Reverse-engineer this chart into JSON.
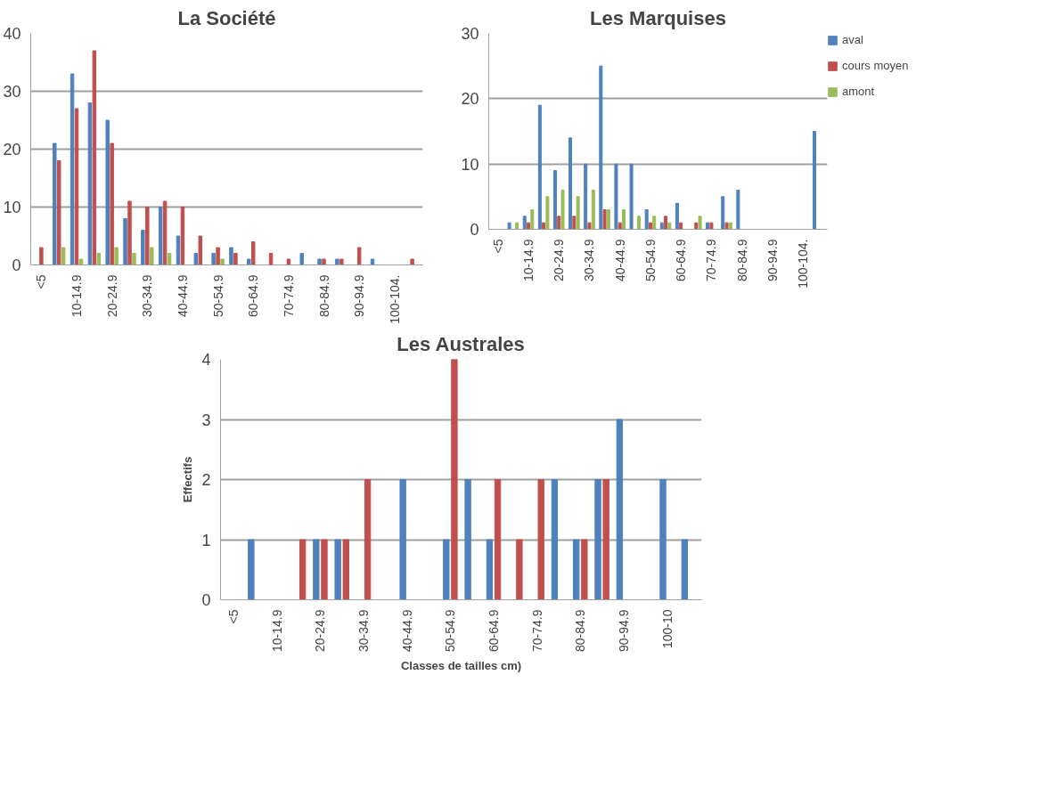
{
  "chart_data": [
    {
      "type": "bar",
      "title": "La Société",
      "categories": [
        "<5",
        null,
        "10-14.9",
        null,
        "20-24.9",
        null,
        "30-34.9",
        null,
        "40-44.9",
        null,
        "50-54.9",
        null,
        "60-64.9",
        null,
        "70-74.9",
        null,
        "80-84.9",
        null,
        "90-94.9",
        null,
        "100-104.",
        null
      ],
      "series": [
        {
          "color": "#4f81bd",
          "values": [
            0,
            21,
            33,
            28,
            25,
            8,
            6,
            10,
            5,
            2,
            2,
            3,
            1,
            0,
            0,
            2,
            1,
            1,
            0,
            1,
            0,
            0
          ]
        },
        {
          "color": "#c0504d",
          "values": [
            3,
            18,
            27,
            37,
            21,
            11,
            10,
            11,
            10,
            5,
            3,
            2,
            4,
            2,
            1,
            0,
            1,
            1,
            3,
            0,
            0,
            1
          ]
        },
        {
          "color": "#9bbb59",
          "values": [
            0,
            3,
            1,
            2,
            3,
            2,
            3,
            2,
            0,
            0,
            1,
            0,
            0,
            0,
            0,
            0,
            0,
            0,
            0,
            0,
            0,
            0
          ]
        }
      ],
      "ylim": [
        0,
        40
      ],
      "yticks": [
        0,
        10,
        20,
        30,
        40
      ],
      "grid": "y"
    },
    {
      "type": "bar",
      "title": "Les Marquises",
      "categories": [
        "<5",
        null,
        "10-14.9",
        null,
        "20-24.9",
        null,
        "30-34.9",
        null,
        "40-44.9",
        null,
        "50-54.9",
        null,
        "60-64.9",
        null,
        "70-74.9",
        null,
        "80-84.9",
        null,
        "90-94.9",
        null,
        "100-104.",
        null
      ],
      "series": [
        {
          "name": "aval",
          "color": "#4f81bd",
          "values": [
            0,
            1,
            2,
            19,
            9,
            14,
            10,
            25,
            10,
            10,
            3,
            1,
            4,
            0,
            1,
            5,
            6,
            0,
            0,
            0,
            0,
            15
          ]
        },
        {
          "name": "cours moyen",
          "color": "#c0504d",
          "values": [
            0,
            0,
            1,
            1,
            2,
            2,
            1,
            3,
            1,
            0,
            1,
            2,
            1,
            1,
            1,
            1,
            0,
            0,
            0,
            0,
            0,
            0
          ]
        },
        {
          "name": "amont",
          "color": "#9bbb59",
          "values": [
            0,
            1,
            3,
            5,
            6,
            5,
            6,
            3,
            3,
            2,
            2,
            1,
            0,
            2,
            0,
            1,
            0,
            0,
            0,
            0,
            0,
            0
          ]
        }
      ],
      "ylim": [
        0,
        30
      ],
      "yticks": [
        0,
        10,
        20,
        30
      ],
      "grid": "y",
      "legend": "right"
    },
    {
      "type": "bar",
      "title": "Les Australes",
      "xlabel": "Classes de tailles cm)",
      "ylabel": "Effectifs",
      "categories": [
        "<5",
        null,
        "10-14.9",
        null,
        "20-24.9",
        null,
        "30-34.9",
        null,
        "40-44.9",
        null,
        "50-54.9",
        null,
        "60-64.9",
        null,
        "70-74.9",
        null,
        "80-84.9",
        null,
        "90-94.9",
        null,
        "100-10",
        null
      ],
      "series": [
        {
          "color": "#4f81bd",
          "values": [
            0,
            1,
            0,
            0,
            1,
            1,
            0,
            0,
            2,
            0,
            1,
            2,
            1,
            0,
            0,
            2,
            1,
            2,
            3,
            0,
            2,
            1
          ]
        },
        {
          "color": "#c0504d",
          "values": [
            0,
            0,
            0,
            1,
            1,
            1,
            2,
            0,
            0,
            0,
            4,
            0,
            2,
            1,
            2,
            0,
            1,
            2,
            0,
            0,
            0,
            0
          ]
        }
      ],
      "ylim": [
        0,
        4
      ],
      "yticks": [
        0,
        1,
        2,
        3,
        4
      ],
      "grid": "y"
    }
  ]
}
